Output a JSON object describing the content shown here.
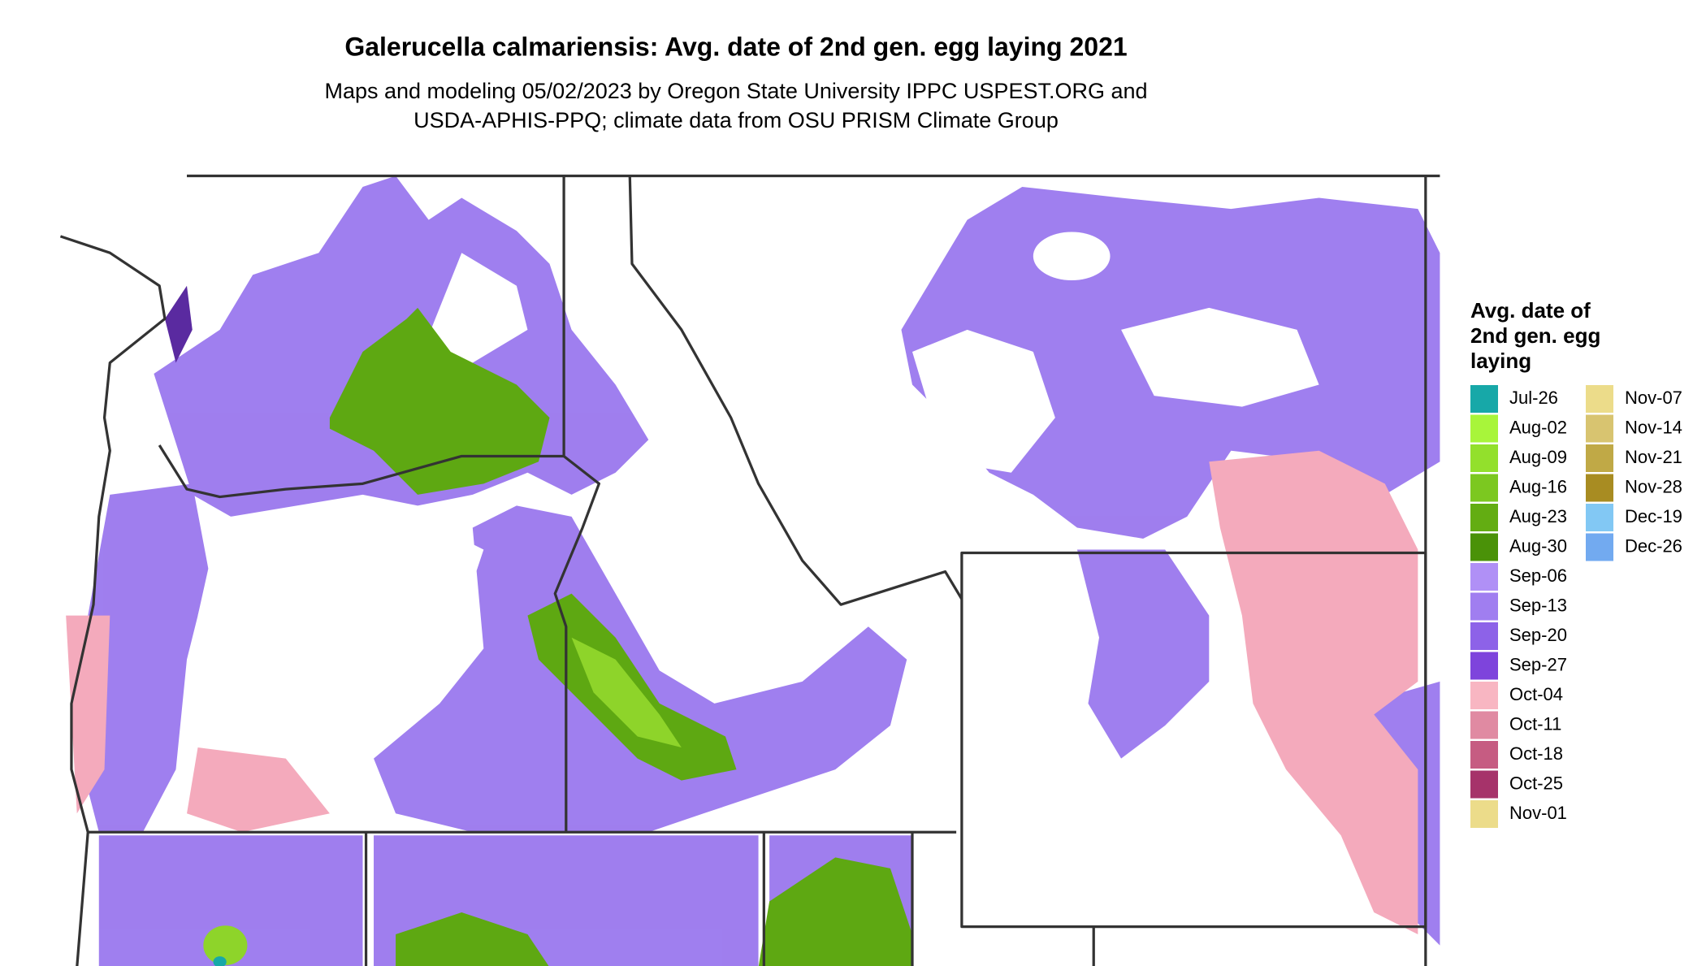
{
  "title": "Galerucella calmariensis: Avg. date of 2nd gen. egg laying 2021",
  "subtitle_lines": [
    "Maps and modeling 05/02/2023 by Oregon State University IPPC USPEST.ORG and",
    "USDA-APHIS-PPQ; climate data from OSU PRISM Climate Group"
  ],
  "legend": {
    "title_lines": [
      "Avg. date of",
      "2nd gen. egg",
      "laying"
    ],
    "entries": [
      {
        "label": "Jul-26",
        "color": "#17a8a8"
      },
      {
        "label": "Aug-02",
        "color": "#a8f53a"
      },
      {
        "label": "Aug-09",
        "color": "#93e02c"
      },
      {
        "label": "Aug-16",
        "color": "#7cc820"
      },
      {
        "label": "Aug-23",
        "color": "#63ad12"
      },
      {
        "label": "Aug-30",
        "color": "#4a9208"
      },
      {
        "label": "Sep-06",
        "color": "#b090f6"
      },
      {
        "label": "Sep-13",
        "color": "#a07ef0"
      },
      {
        "label": "Sep-20",
        "color": "#8d62e8"
      },
      {
        "label": "Sep-27",
        "color": "#7e44dc"
      },
      {
        "label": "Oct-04",
        "color": "#f8b6c2"
      },
      {
        "label": "Oct-11",
        "color": "#e08aa2"
      },
      {
        "label": "Oct-18",
        "color": "#c65c82"
      },
      {
        "label": "Oct-25",
        "color": "#a6336a"
      },
      {
        "label": "Nov-01",
        "color": "#ecdc8a"
      },
      {
        "label": "Nov-07",
        "color": "#ecdc8a"
      },
      {
        "label": "Nov-14",
        "color": "#d8c470"
      },
      {
        "label": "Nov-21",
        "color": "#c0a946"
      },
      {
        "label": "Nov-28",
        "color": "#a88c22"
      },
      {
        "label": "Dec-19",
        "color": "#82c8f4"
      },
      {
        "label": "Dec-26",
        "color": "#72aaf0"
      }
    ]
  }
}
